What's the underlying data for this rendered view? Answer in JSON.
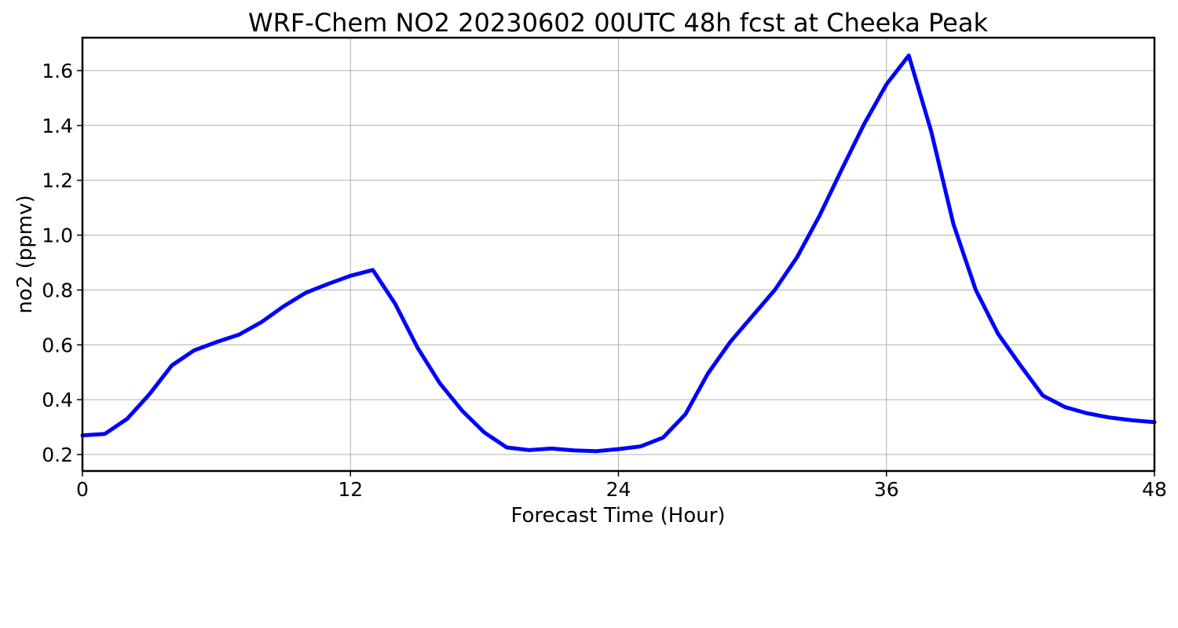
{
  "chart_data": {
    "type": "line",
    "title": "WRF-Chem NO2  20230602 00UTC 48h fcst at Cheeka Peak",
    "xlabel": "Forecast Time (Hour)",
    "ylabel": "no2  (ppmv)",
    "xlim": [
      0,
      48
    ],
    "ylim": [
      0.14,
      1.72
    ],
    "xticks": [
      0,
      12,
      24,
      36,
      48
    ],
    "xtick_labels": [
      "0",
      "12",
      "24",
      "36",
      "48"
    ],
    "yticks": [
      0.2,
      0.4,
      0.6,
      0.8,
      1.0,
      1.2,
      1.4,
      1.6
    ],
    "ytick_labels": [
      "0.2",
      "0.4",
      "0.6",
      "0.8",
      "1.0",
      "1.2",
      "1.4",
      "1.6"
    ],
    "grid": true,
    "series": [
      {
        "color": "#0000ff",
        "x": [
          0,
          1,
          2,
          3,
          4,
          5,
          6,
          7,
          8,
          9,
          10,
          11,
          12,
          13,
          14,
          15,
          16,
          17,
          18,
          19,
          20,
          21,
          22,
          23,
          24,
          25,
          26,
          27,
          28,
          29,
          30,
          31,
          32,
          33,
          34,
          35,
          36,
          37,
          38,
          39,
          40,
          41,
          42,
          43,
          44,
          45,
          46,
          47,
          48
        ],
        "y": [
          0.27,
          0.275,
          0.33,
          0.42,
          0.525,
          0.58,
          0.61,
          0.637,
          0.682,
          0.74,
          0.79,
          0.822,
          0.852,
          0.873,
          0.75,
          0.59,
          0.46,
          0.36,
          0.28,
          0.226,
          0.216,
          0.222,
          0.215,
          0.212,
          0.22,
          0.23,
          0.262,
          0.347,
          0.495,
          0.61,
          0.705,
          0.8,
          0.92,
          1.07,
          1.24,
          1.405,
          1.55,
          1.655,
          1.38,
          1.04,
          0.8,
          0.64,
          0.525,
          0.415,
          0.373,
          0.35,
          0.335,
          0.325,
          0.318
        ]
      }
    ]
  }
}
